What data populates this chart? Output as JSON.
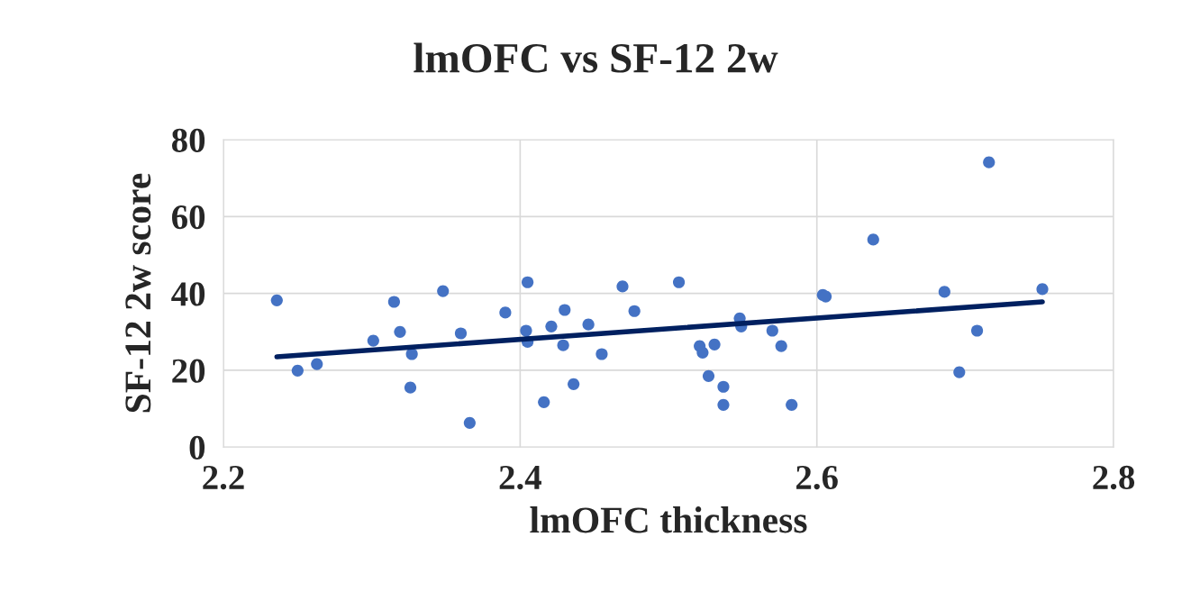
{
  "chart_data": {
    "type": "scatter",
    "title": "lmOFC vs SF-12 2w",
    "xlabel": "lmOFC thickness",
    "ylabel": "SF-12 2w score",
    "xlim": [
      2.2,
      2.8
    ],
    "xticks": [
      2.2,
      2.4,
      2.6,
      2.8
    ],
    "ylim": [
      0,
      80
    ],
    "yticks": [
      0,
      20,
      40,
      60,
      80
    ],
    "grid": true,
    "series": [
      {
        "marker": "circle",
        "color": "#4472c4",
        "x": [
          2.236,
          2.25,
          2.263,
          2.301,
          2.315,
          2.319,
          2.327,
          2.326,
          2.348,
          2.36,
          2.366,
          2.39,
          2.405,
          2.404,
          2.405,
          2.416,
          2.421,
          2.43,
          2.429,
          2.436,
          2.446,
          2.455,
          2.469,
          2.477,
          2.507,
          2.521,
          2.523,
          2.527,
          2.531,
          2.537,
          2.537,
          2.548,
          2.549,
          2.57,
          2.576,
          2.583,
          2.604,
          2.606,
          2.638,
          2.686,
          2.696,
          2.708,
          2.716,
          2.752
        ],
        "values": [
          38.2,
          19.9,
          21.6,
          27.7,
          37.8,
          30.0,
          24.2,
          15.5,
          40.6,
          29.6,
          6.3,
          35.0,
          42.9,
          30.3,
          27.4,
          11.7,
          31.4,
          35.7,
          26.5,
          16.4,
          31.9,
          24.2,
          41.8,
          35.4,
          42.9,
          26.3,
          24.6,
          18.5,
          26.7,
          15.7,
          11.0,
          33.5,
          31.4,
          30.3,
          26.3,
          11.0,
          39.6,
          39.2,
          54.0,
          40.4,
          19.5,
          30.3,
          74.1,
          41.1
        ]
      },
      {
        "type": "line",
        "marker": "none",
        "color": "#002060",
        "x": [
          2.236,
          2.752
        ],
        "values": [
          23.5,
          37.8
        ]
      }
    ]
  }
}
